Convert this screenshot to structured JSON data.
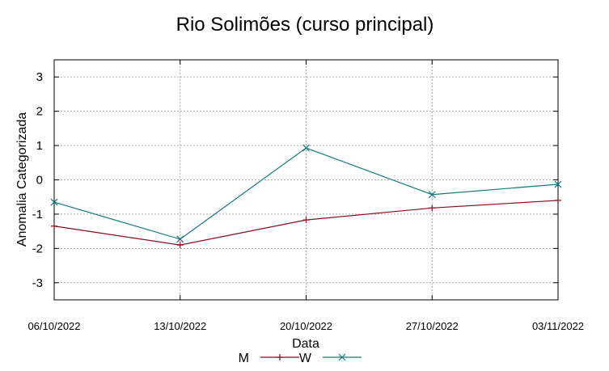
{
  "chart_data": {
    "type": "line",
    "title": "Rio Solimões (curso principal)",
    "xlabel": "Data",
    "ylabel": "Anomalia Categorizada",
    "categories": [
      "06/10/2022",
      "13/10/2022",
      "20/10/2022",
      "27/10/2022",
      "03/11/2022"
    ],
    "yticks": [
      "3",
      "2",
      "1",
      "0",
      "-1",
      "-2",
      "-3"
    ],
    "ylim": [
      -3.5,
      3.5
    ],
    "grid": true,
    "legend": "bottom",
    "series": [
      {
        "name": "M",
        "color": "#8b0a1a",
        "marker": "plus",
        "values": [
          -1.35,
          -1.9,
          -1.17,
          -0.82,
          -0.6
        ]
      },
      {
        "name": "W",
        "color": "#12797b",
        "marker": "x",
        "values": [
          -0.65,
          -1.73,
          0.93,
          -0.43,
          -0.13
        ]
      }
    ]
  }
}
